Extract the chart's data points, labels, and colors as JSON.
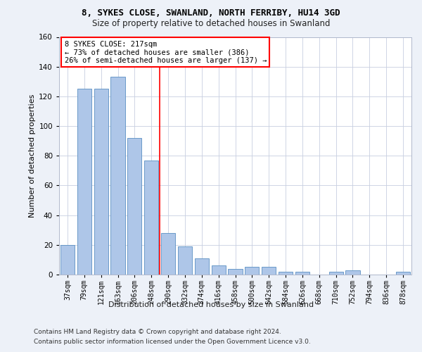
{
  "title1": "8, SYKES CLOSE, SWANLAND, NORTH FERRIBY, HU14 3GD",
  "title2": "Size of property relative to detached houses in Swanland",
  "xlabel": "Distribution of detached houses by size in Swanland",
  "ylabel": "Number of detached properties",
  "categories": [
    "37sqm",
    "79sqm",
    "121sqm",
    "163sqm",
    "206sqm",
    "248sqm",
    "290sqm",
    "332sqm",
    "374sqm",
    "416sqm",
    "458sqm",
    "500sqm",
    "542sqm",
    "584sqm",
    "626sqm",
    "668sqm",
    "710sqm",
    "752sqm",
    "794sqm",
    "836sqm",
    "878sqm"
  ],
  "values": [
    20,
    125,
    125,
    133,
    92,
    77,
    28,
    19,
    11,
    6,
    4,
    5,
    5,
    2,
    2,
    0,
    2,
    3,
    0,
    0,
    2
  ],
  "bar_color": "#aec6e8",
  "bar_edge_color": "#5a8fc2",
  "vline_index": 5,
  "vline_color": "red",
  "annotation_line1": "8 SYKES CLOSE: 217sqm",
  "annotation_line2": "← 73% of detached houses are smaller (386)",
  "annotation_line3": "26% of semi-detached houses are larger (137) →",
  "ylim": [
    0,
    160
  ],
  "yticks": [
    0,
    20,
    40,
    60,
    80,
    100,
    120,
    140,
    160
  ],
  "footer_line1": "Contains HM Land Registry data © Crown copyright and database right 2024.",
  "footer_line2": "Contains public sector information licensed under the Open Government Licence v3.0.",
  "bg_color": "#edf1f8",
  "plot_bg_color": "#ffffff",
  "grid_color": "#c8cfe0",
  "title1_fontsize": 9,
  "title2_fontsize": 8.5,
  "ylabel_fontsize": 8,
  "xlabel_fontsize": 8,
  "tick_fontsize": 7,
  "annot_fontsize": 7.5,
  "footer_fontsize": 6.5
}
